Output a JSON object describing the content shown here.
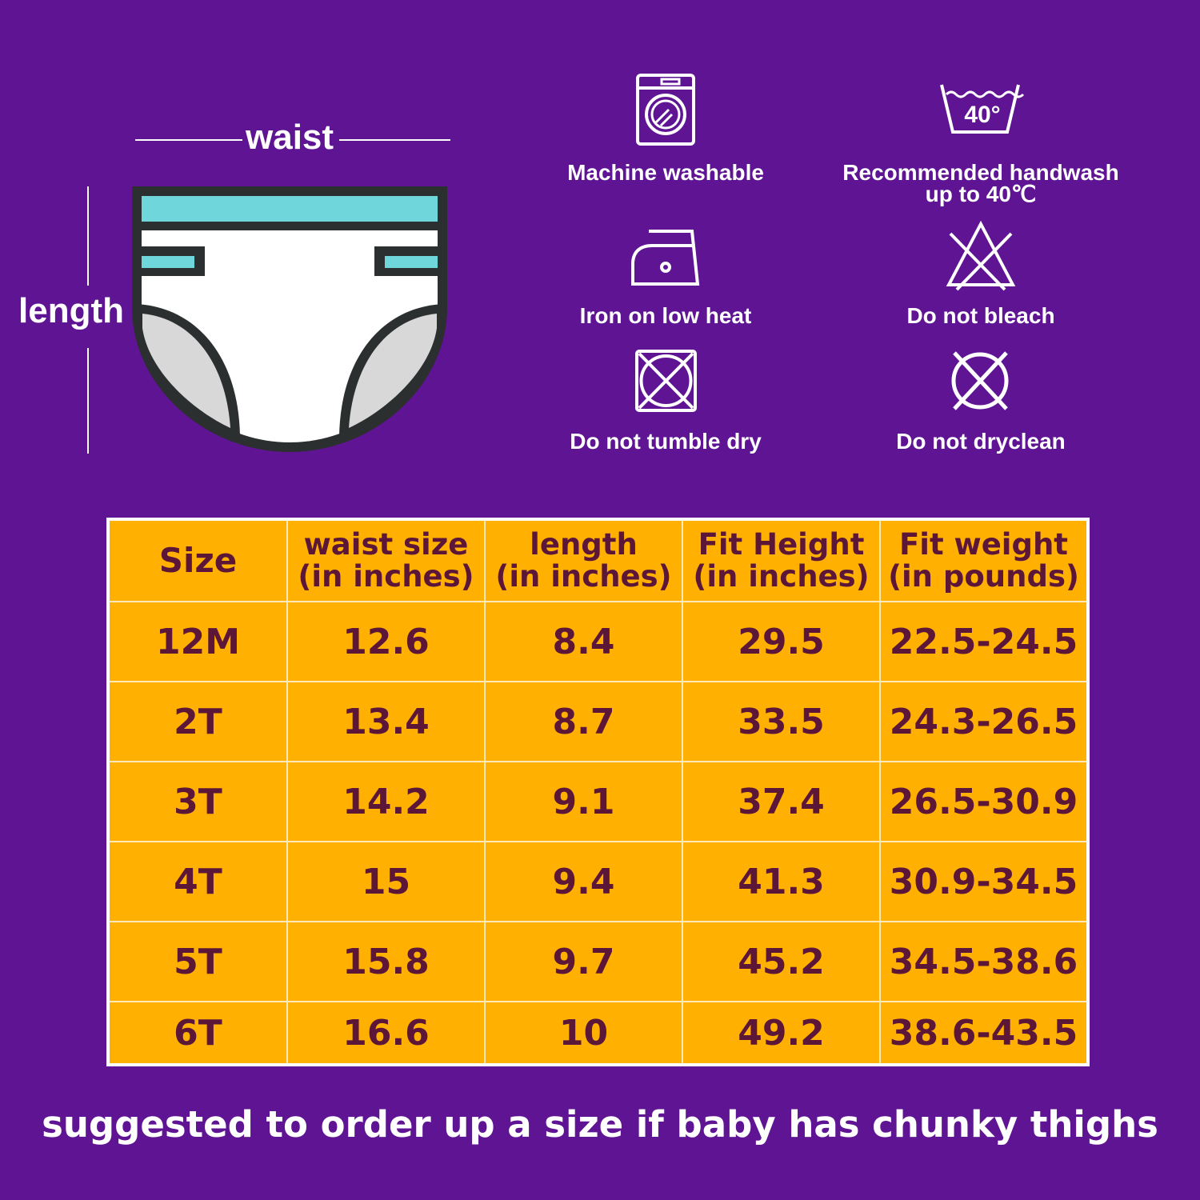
{
  "colors": {
    "background": "#5f1494",
    "table_fill": "#ffb000",
    "table_text": "#5c1738",
    "diaper_band": "#6fd6dc",
    "diaper_leg": "#d8d8d8"
  },
  "diagram": {
    "waist_label": "waist",
    "length_label": "length"
  },
  "care": [
    {
      "icon": "washing-machine-icon",
      "label": "Machine washable"
    },
    {
      "icon": "handwash-basin-icon",
      "label": "Recommended handwash",
      "label2": "up to 40℃",
      "icon_text": "40°"
    },
    {
      "icon": "iron-icon",
      "label": "Iron on low heat"
    },
    {
      "icon": "no-bleach-icon",
      "label": "Do not bleach"
    },
    {
      "icon": "no-tumble-dry-icon",
      "label": "Do not tumble dry"
    },
    {
      "icon": "no-dryclean-icon",
      "label": "Do not dryclean"
    }
  ],
  "table": {
    "headers": [
      [
        "Size"
      ],
      [
        "waist size",
        "(in inches)"
      ],
      [
        "length",
        "(in inches)"
      ],
      [
        "Fit Height",
        "(in inches)"
      ],
      [
        "Fit weight",
        "(in pounds)"
      ]
    ],
    "rows": [
      [
        "12M",
        "12.6",
        "8.4",
        "29.5",
        "22.5-24.5"
      ],
      [
        "2T",
        "13.4",
        "8.7",
        "33.5",
        "24.3-26.5"
      ],
      [
        "3T",
        "14.2",
        "9.1",
        "37.4",
        "26.5-30.9"
      ],
      [
        "4T",
        "15",
        "9.4",
        "41.3",
        "30.9-34.5"
      ],
      [
        "5T",
        "15.8",
        "9.7",
        "45.2",
        "34.5-38.6"
      ],
      [
        "6T",
        "16.6",
        "10",
        "49.2",
        "38.6-43.5"
      ]
    ]
  },
  "footer": "suggested to order up a size if baby has chunky thighs"
}
